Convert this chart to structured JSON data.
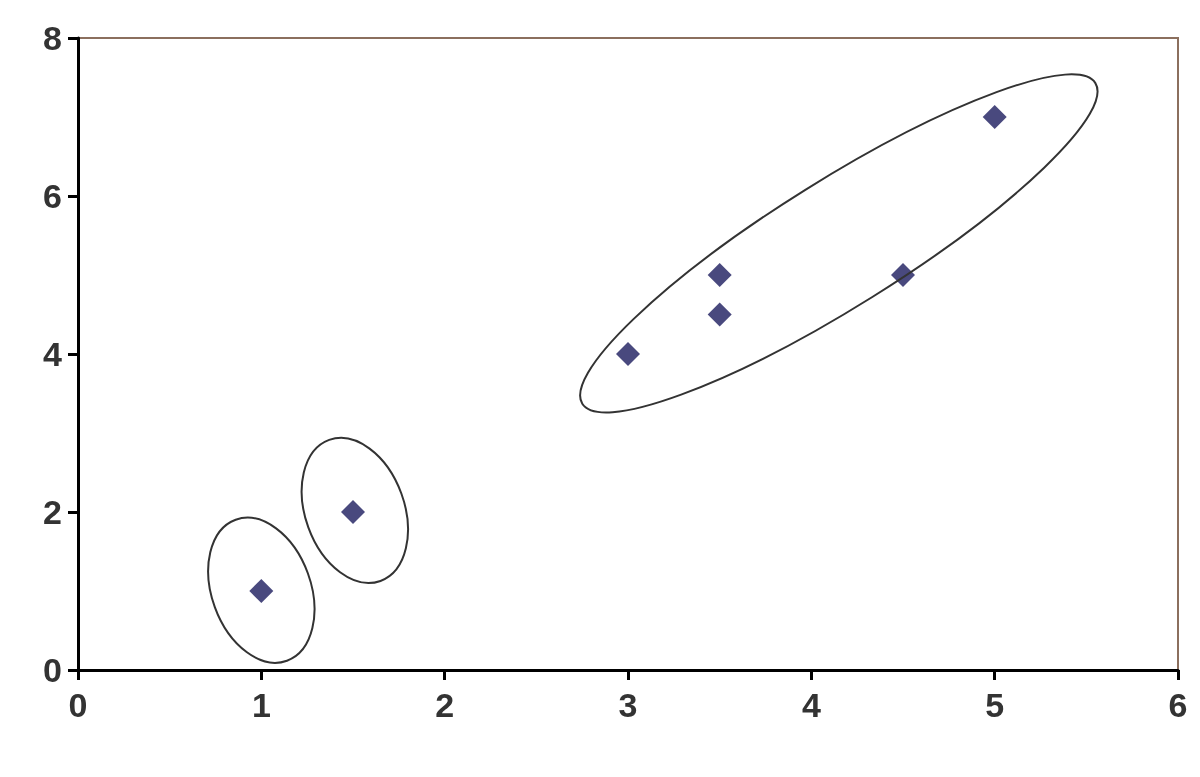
{
  "chart_data": {
    "type": "scatter",
    "x": [
      1,
      1.5,
      3,
      3.5,
      3.5,
      4.5,
      5
    ],
    "values": [
      1,
      2,
      4,
      4.5,
      5,
      5,
      7
    ],
    "color": "#1c1c5e",
    "marker": "diamond",
    "grid": false,
    "xlim": [
      0,
      6
    ],
    "xticks": [
      0,
      1,
      2,
      3,
      4,
      5,
      6
    ],
    "ylim": [
      0,
      8
    ],
    "yticks": [
      0,
      2,
      4,
      6,
      8
    ]
  }
}
